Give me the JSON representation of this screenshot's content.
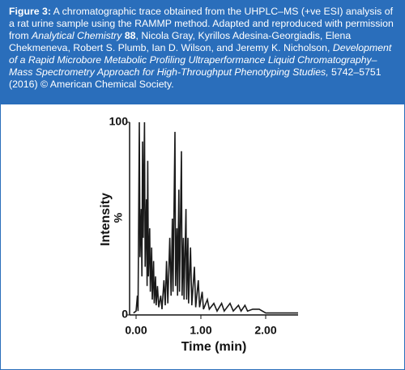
{
  "caption": {
    "label": "Figure 3:",
    "parts": [
      {
        "text": " A chromatographic trace obtained from the UHPLC–MS (+ve ESI) analysis of a rat urine sample using the RAMMP method. Adapted and reproduced with permission from ",
        "style": "normal"
      },
      {
        "text": "Analytical Chemistry",
        "style": "italic"
      },
      {
        "text": " 88",
        "style": "bold"
      },
      {
        "text": ", Nicola Gray, Kyrillos Adesina-Georgiadis, Elena Chekmeneva, Robert S. Plumb, Ian D. Wilson, and Jeremy K. Nicholson, ",
        "style": "normal"
      },
      {
        "text": "Development of a Rapid Microbore Metabolic Profiling Ultraperformance Liquid Chromatography–Mass Spectrometry Approach for High-Throughput Phenotyping Studies,",
        "style": "italic"
      },
      {
        "text": " 5742–5751 (2016) © American Chemical Society.",
        "style": "normal"
      }
    ]
  },
  "chart_data": {
    "type": "line",
    "x_label": "Time (min)",
    "y_label": "Intensity",
    "y_unit": "%",
    "color": "#1a1a1a",
    "xlim": [
      -0.1,
      2.5
    ],
    "ylim": [
      0,
      100
    ],
    "xticks": [
      {
        "value": 0,
        "label": "0.00"
      },
      {
        "value": 1,
        "label": "1.00"
      },
      {
        "value": 2,
        "label": "2.00"
      }
    ],
    "yticks": [
      0,
      100
    ],
    "x": [
      -0.04,
      0.0,
      0.02,
      0.03,
      0.05,
      0.06,
      0.08,
      0.09,
      0.1,
      0.11,
      0.13,
      0.14,
      0.16,
      0.17,
      0.18,
      0.19,
      0.21,
      0.22,
      0.24,
      0.25,
      0.27,
      0.28,
      0.3,
      0.31,
      0.33,
      0.35,
      0.38,
      0.4,
      0.43,
      0.45,
      0.47,
      0.49,
      0.52,
      0.54,
      0.56,
      0.57,
      0.6,
      0.61,
      0.63,
      0.64,
      0.66,
      0.67,
      0.7,
      0.71,
      0.73,
      0.74,
      0.77,
      0.78,
      0.8,
      0.81,
      0.84,
      0.86,
      0.9,
      0.92,
      0.96,
      0.98,
      1.02,
      1.04,
      1.1,
      1.13,
      1.2,
      1.25,
      1.32,
      1.36,
      1.45,
      1.5,
      1.58,
      1.62,
      1.68,
      1.72,
      1.8,
      1.9,
      2.0,
      2.2,
      2.5
    ],
    "values": [
      1,
      2,
      10,
      2,
      100,
      30,
      55,
      20,
      90,
      40,
      100,
      25,
      60,
      15,
      80,
      20,
      45,
      12,
      35,
      8,
      28,
      6,
      20,
      5,
      15,
      4,
      10,
      3,
      18,
      5,
      28,
      6,
      40,
      10,
      50,
      12,
      95,
      15,
      45,
      10,
      65,
      12,
      85,
      10,
      40,
      8,
      55,
      8,
      40,
      6,
      35,
      5,
      25,
      4,
      18,
      4,
      12,
      3,
      8,
      3,
      6,
      2,
      6,
      2,
      6,
      2,
      5,
      2,
      5,
      2,
      3,
      3,
      1,
      1,
      1
    ]
  }
}
